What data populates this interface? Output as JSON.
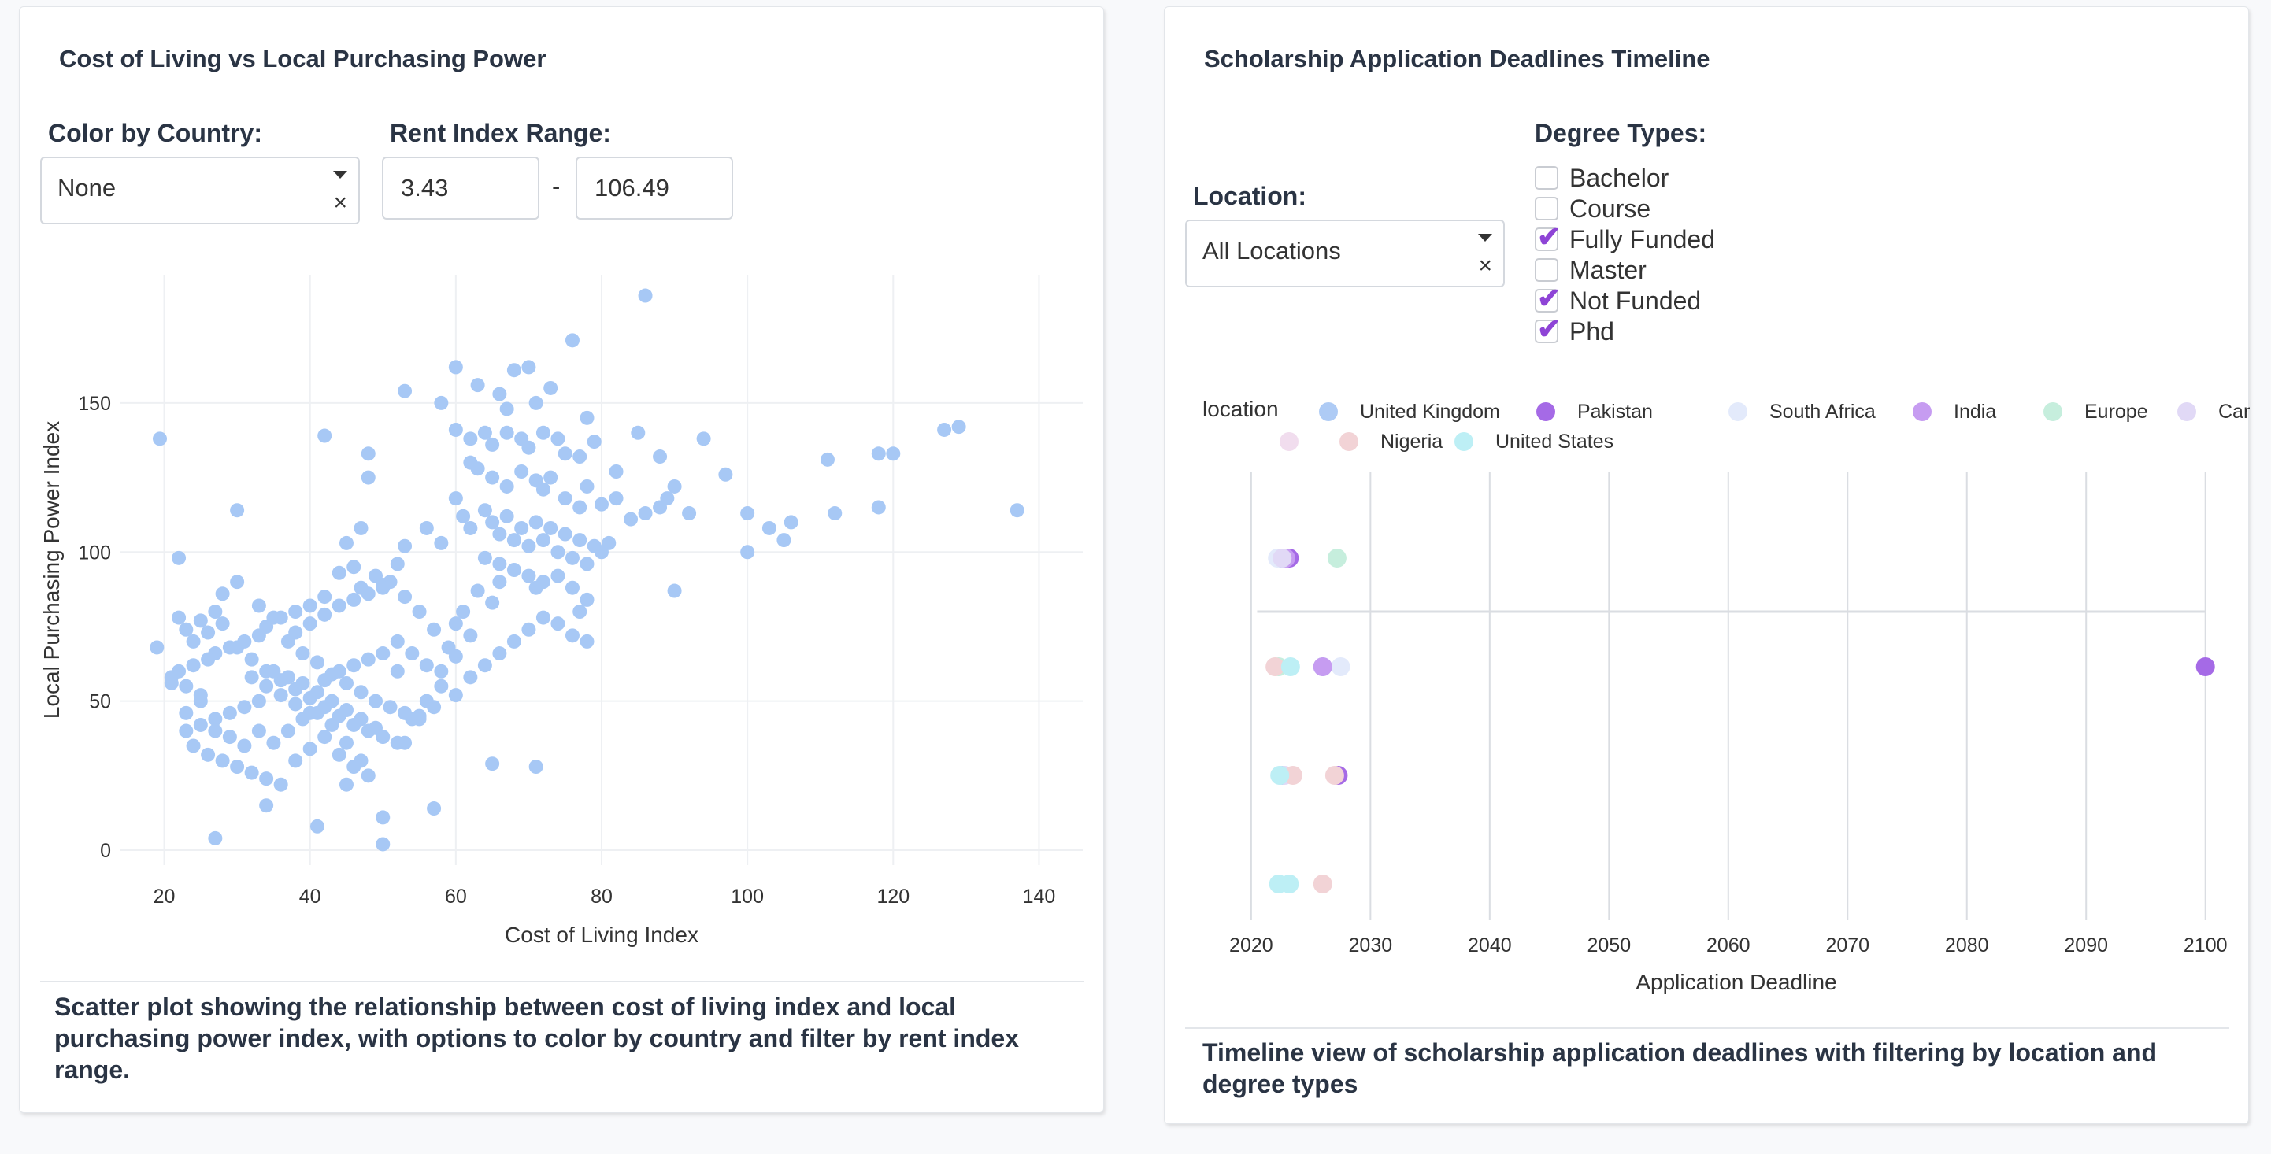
{
  "left_panel": {
    "title": "Cost of Living vs Local Purchasing Power",
    "color_by_label": "Color by Country:",
    "color_by_value": "None",
    "rent_range_label": "Rent Index Range:",
    "rent_min": "3.43",
    "rent_separator": "-",
    "rent_max": "106.49",
    "caption": "Scatter plot showing the relationship between cost of living index and local purchasing power index, with options to color by country and filter by rent index range."
  },
  "right_panel": {
    "title": "Scholarship Application Deadlines Timeline",
    "location_label": "Location:",
    "location_value": "All Locations",
    "degree_types_label": "Degree Types:",
    "degree_types": [
      {
        "label": "Bachelor",
        "checked": false
      },
      {
        "label": "Course",
        "checked": false
      },
      {
        "label": "Fully Funded",
        "checked": true
      },
      {
        "label": "Master",
        "checked": false
      },
      {
        "label": "Not Funded",
        "checked": true
      },
      {
        "label": "Phd",
        "checked": true
      }
    ],
    "caption": "Timeline view of scholarship application deadlines with filtering by location and degree types"
  },
  "colors": {
    "scatter_point": "#a7c8f5",
    "check": "#8e44d6",
    "text": "#2a3444"
  },
  "chart_data": [
    {
      "type": "scatter",
      "title": "",
      "xlabel": "Cost of Living Index",
      "ylabel": "Local Purchasing Power Index",
      "xlim": [
        14,
        146
      ],
      "ylim": [
        -5,
        193
      ],
      "xticks": [
        20,
        40,
        60,
        80,
        100,
        120,
        140
      ],
      "yticks": [
        0,
        50,
        100,
        150
      ],
      "grid": true,
      "color": "#a7c8f5",
      "points": [
        [
          19.4,
          138
        ],
        [
          86,
          186
        ],
        [
          60,
          162
        ],
        [
          68,
          161
        ],
        [
          70,
          162
        ],
        [
          76,
          171
        ],
        [
          53,
          154
        ],
        [
          63,
          156
        ],
        [
          58,
          150
        ],
        [
          66,
          153
        ],
        [
          67,
          148
        ],
        [
          71,
          150
        ],
        [
          73,
          155
        ],
        [
          78,
          145
        ],
        [
          60,
          141
        ],
        [
          62,
          138
        ],
        [
          64,
          140
        ],
        [
          65,
          136
        ],
        [
          67,
          140
        ],
        [
          69,
          138
        ],
        [
          70,
          135
        ],
        [
          72,
          140
        ],
        [
          74,
          138
        ],
        [
          75,
          133
        ],
        [
          77,
          132
        ],
        [
          79,
          137
        ],
        [
          82,
          127
        ],
        [
          85,
          140
        ],
        [
          88,
          132
        ],
        [
          94,
          138
        ],
        [
          118,
          133
        ],
        [
          120,
          133
        ],
        [
          111,
          131
        ],
        [
          127,
          141
        ],
        [
          129,
          142
        ],
        [
          42,
          139
        ],
        [
          48,
          133
        ],
        [
          48,
          125
        ],
        [
          30,
          114
        ],
        [
          22,
          98
        ],
        [
          62,
          130
        ],
        [
          63,
          128
        ],
        [
          65,
          125
        ],
        [
          67,
          122
        ],
        [
          69,
          127
        ],
        [
          71,
          124
        ],
        [
          72,
          121
        ],
        [
          73,
          125
        ],
        [
          75,
          118
        ],
        [
          77,
          115
        ],
        [
          78,
          122
        ],
        [
          80,
          116
        ],
        [
          82,
          118
        ],
        [
          84,
          111
        ],
        [
          86,
          113
        ],
        [
          88,
          115
        ],
        [
          89,
          118
        ],
        [
          90,
          122
        ],
        [
          92,
          113
        ],
        [
          97,
          126
        ],
        [
          100,
          113
        ],
        [
          106,
          110
        ],
        [
          112,
          113
        ],
        [
          118,
          115
        ],
        [
          137,
          114
        ],
        [
          103,
          108
        ],
        [
          105,
          104
        ],
        [
          100,
          100
        ],
        [
          90,
          87
        ],
        [
          81,
          103
        ],
        [
          60,
          118
        ],
        [
          61,
          112
        ],
        [
          62,
          108
        ],
        [
          64,
          114
        ],
        [
          65,
          110
        ],
        [
          66,
          106
        ],
        [
          67,
          112
        ],
        [
          68,
          104
        ],
        [
          69,
          108
        ],
        [
          70,
          102
        ],
        [
          71,
          110
        ],
        [
          72,
          104
        ],
        [
          73,
          108
        ],
        [
          74,
          100
        ],
        [
          75,
          106
        ],
        [
          76,
          98
        ],
        [
          77,
          104
        ],
        [
          78,
          96
        ],
        [
          79,
          102
        ],
        [
          80,
          100
        ],
        [
          64,
          98
        ],
        [
          66,
          96
        ],
        [
          68,
          94
        ],
        [
          70,
          92
        ],
        [
          72,
          90
        ],
        [
          74,
          92
        ],
        [
          76,
          88
        ],
        [
          78,
          84
        ],
        [
          71,
          88
        ],
        [
          66,
          90
        ],
        [
          63,
          87
        ],
        [
          65,
          83
        ],
        [
          61,
          80
        ],
        [
          60,
          76
        ],
        [
          62,
          72
        ],
        [
          59,
          68
        ],
        [
          57,
          74
        ],
        [
          55,
          80
        ],
        [
          53,
          85
        ],
        [
          51,
          90
        ],
        [
          49,
          92
        ],
        [
          47,
          88
        ],
        [
          46,
          95
        ],
        [
          45,
          103
        ],
        [
          47,
          108
        ],
        [
          53,
          102
        ],
        [
          56,
          108
        ],
        [
          58,
          103
        ],
        [
          52,
          96
        ],
        [
          50,
          89
        ],
        [
          44,
          93
        ],
        [
          42,
          85
        ],
        [
          40,
          82
        ],
        [
          38,
          80
        ],
        [
          36,
          78
        ],
        [
          34,
          75
        ],
        [
          33,
          72
        ],
        [
          31,
          70
        ],
        [
          29,
          68
        ],
        [
          27,
          66
        ],
        [
          26,
          64
        ],
        [
          24,
          62
        ],
        [
          22,
          60
        ],
        [
          21,
          58
        ],
        [
          19,
          68
        ],
        [
          23,
          74
        ],
        [
          25,
          77
        ],
        [
          27,
          80
        ],
        [
          28,
          86
        ],
        [
          30,
          90
        ],
        [
          22,
          78
        ],
        [
          24,
          70
        ],
        [
          26,
          73
        ],
        [
          28,
          76
        ],
        [
          30,
          68
        ],
        [
          32,
          64
        ],
        [
          34,
          60
        ],
        [
          36,
          57
        ],
        [
          38,
          54
        ],
        [
          40,
          51
        ],
        [
          42,
          48
        ],
        [
          44,
          45
        ],
        [
          46,
          42
        ],
        [
          48,
          40
        ],
        [
          50,
          38
        ],
        [
          52,
          36
        ],
        [
          54,
          44
        ],
        [
          56,
          50
        ],
        [
          58,
          55
        ],
        [
          60,
          52
        ],
        [
          62,
          58
        ],
        [
          64,
          62
        ],
        [
          66,
          66
        ],
        [
          68,
          70
        ],
        [
          70,
          74
        ],
        [
          72,
          78
        ],
        [
          74,
          76
        ],
        [
          76,
          72
        ],
        [
          78,
          70
        ],
        [
          77,
          80
        ],
        [
          35,
          60
        ],
        [
          37,
          58
        ],
        [
          39,
          56
        ],
        [
          41,
          53
        ],
        [
          43,
          50
        ],
        [
          45,
          47
        ],
        [
          47,
          44
        ],
        [
          49,
          41
        ],
        [
          33,
          50
        ],
        [
          31,
          48
        ],
        [
          29,
          46
        ],
        [
          27,
          44
        ],
        [
          25,
          42
        ],
        [
          23,
          40
        ],
        [
          24,
          35
        ],
        [
          26,
          32
        ],
        [
          28,
          30
        ],
        [
          30,
          28
        ],
        [
          32,
          26
        ],
        [
          34,
          24
        ],
        [
          36,
          22
        ],
        [
          38,
          30
        ],
        [
          40,
          34
        ],
        [
          42,
          38
        ],
        [
          44,
          32
        ],
        [
          46,
          28
        ],
        [
          48,
          25
        ],
        [
          34,
          15
        ],
        [
          27,
          4
        ],
        [
          50,
          2
        ],
        [
          50,
          11
        ],
        [
          57,
          14
        ],
        [
          65,
          29
        ],
        [
          71,
          28
        ],
        [
          41,
          8
        ],
        [
          45,
          22
        ],
        [
          47,
          30
        ],
        [
          53,
          36
        ],
        [
          55,
          45
        ],
        [
          57,
          48
        ],
        [
          35,
          36
        ],
        [
          37,
          40
        ],
        [
          39,
          44
        ],
        [
          41,
          46
        ],
        [
          43,
          42
        ],
        [
          45,
          36
        ],
        [
          33,
          40
        ],
        [
          31,
          35
        ],
        [
          29,
          38
        ],
        [
          27,
          40
        ],
        [
          25,
          52
        ],
        [
          23,
          55
        ],
        [
          21,
          56
        ],
        [
          23,
          46
        ],
        [
          25,
          50
        ],
        [
          38,
          73
        ],
        [
          40,
          76
        ],
        [
          42,
          79
        ],
        [
          44,
          82
        ],
        [
          46,
          84
        ],
        [
          48,
          86
        ],
        [
          50,
          88
        ],
        [
          52,
          70
        ],
        [
          54,
          66
        ],
        [
          56,
          62
        ],
        [
          58,
          60
        ],
        [
          60,
          65
        ],
        [
          32,
          58
        ],
        [
          34,
          55
        ],
        [
          36,
          52
        ],
        [
          38,
          49
        ],
        [
          40,
          46
        ],
        [
          42,
          57
        ],
        [
          44,
          60
        ],
        [
          46,
          62
        ],
        [
          48,
          64
        ],
        [
          50,
          66
        ],
        [
          52,
          60
        ],
        [
          33,
          82
        ],
        [
          35,
          78
        ],
        [
          37,
          70
        ],
        [
          39,
          66
        ],
        [
          41,
          63
        ],
        [
          43,
          59
        ],
        [
          45,
          56
        ],
        [
          47,
          53
        ],
        [
          49,
          50
        ],
        [
          51,
          48
        ],
        [
          53,
          46
        ],
        [
          55,
          44
        ]
      ]
    },
    {
      "type": "scatter",
      "title": "",
      "xlabel": "Application Deadline",
      "ylabel": "",
      "xlim": [
        2017.5,
        2102
      ],
      "xticks": [
        2020,
        2030,
        2040,
        2050,
        2060,
        2070,
        2080,
        2090,
        2100
      ],
      "grid": true,
      "legend_title": "location",
      "legend_position": "top",
      "series": [
        {
          "name": "United Kingdom",
          "color": "#aecbf5",
          "points": [
            [
              2022.5,
              5
            ],
            [
              2022.7,
              4
            ],
            [
              2026,
              2
            ],
            [
              2022.6,
              1
            ]
          ]
        },
        {
          "name": "Pakistan",
          "color": "#a56ae6",
          "points": [
            [
              2023.2,
              4
            ],
            [
              2100,
              2
            ],
            [
              2027.3,
              1
            ]
          ]
        },
        {
          "name": "South Africa",
          "color": "#e3eafb",
          "points": [
            [
              2022.2,
              4
            ],
            [
              2027.5,
              2
            ],
            [
              2022.4,
              1
            ]
          ]
        },
        {
          "name": "India",
          "color": "#c69cf1",
          "points": [
            [
              2022.9,
              4
            ],
            [
              2026,
              2
            ]
          ]
        },
        {
          "name": "Europe",
          "color": "#c6eedd",
          "points": [
            [
              2027.2,
              4
            ],
            [
              2022.3,
              2
            ]
          ]
        },
        {
          "name": "Canada",
          "color": "#e1d9f6",
          "points": [
            [
              2022.6,
              4
            ],
            [
              2022.8,
              1
            ]
          ]
        },
        {
          "name": "",
          "color": "#f1ddee",
          "points": []
        },
        {
          "name": "Nigeria",
          "color": "#f2d3d6",
          "points": [
            [
              2022,
              2
            ],
            [
              2023.5,
              1
            ],
            [
              2027,
              1
            ],
            [
              2026,
              0
            ]
          ]
        },
        {
          "name": "United States",
          "color": "#bdeff5",
          "points": [
            [
              2023.3,
              2
            ],
            [
              2022.4,
              1
            ],
            [
              2023.2,
              0
            ],
            [
              2022.3,
              0
            ]
          ]
        }
      ]
    }
  ]
}
